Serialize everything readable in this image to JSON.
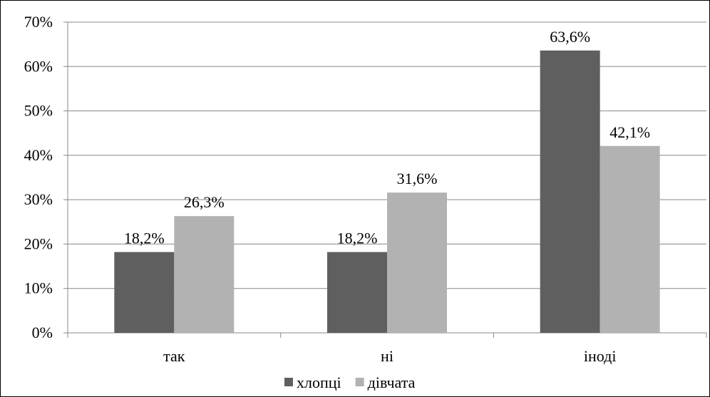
{
  "chart_data": {
    "type": "bar",
    "categories": [
      "так",
      "ні",
      "іноді"
    ],
    "series": [
      {
        "name": "хлопці",
        "values": [
          18.2,
          18.2,
          63.6
        ],
        "labels": [
          "18,2%",
          "18,2%",
          "63,6%"
        ],
        "color": "#5f5f5f"
      },
      {
        "name": "дівчата",
        "values": [
          26.3,
          31.6,
          42.1
        ],
        "labels": [
          "26,3%",
          "31,6%",
          "42,1%"
        ],
        "color": "#b2b2b2"
      }
    ],
    "ylim": [
      0,
      70
    ],
    "yticks": [
      0,
      10,
      20,
      30,
      40,
      50,
      60,
      70
    ],
    "ytick_labels": [
      "0%",
      "10%",
      "20%",
      "30%",
      "40%",
      "50%",
      "60%",
      "70%"
    ],
    "grid": true,
    "legend_position": "bottom",
    "title": "",
    "xlabel": "",
    "ylabel": ""
  }
}
